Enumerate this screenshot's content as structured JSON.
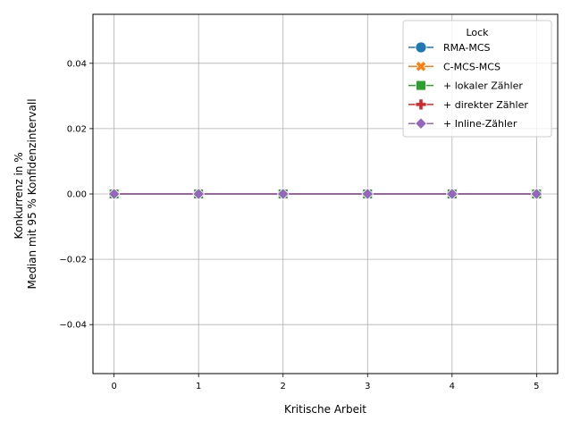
{
  "chart_data": {
    "type": "line",
    "title": "",
    "xlabel": "Kritische Arbeit",
    "ylabel_lines": [
      "Konkurrenz in %",
      "Median mit 95 % Konfidenzintervall"
    ],
    "x": [
      0,
      1,
      2,
      3,
      4,
      5
    ],
    "xlim": [
      -0.25,
      5.25
    ],
    "ylim": [
      -0.055,
      0.055
    ],
    "xticks": [
      0,
      1,
      2,
      3,
      4,
      5
    ],
    "yticks": [
      0.04,
      0.02,
      0.0,
      -0.02,
      -0.04
    ],
    "ytick_labels": [
      "0.04",
      "0.02",
      "0.00",
      "−0.02",
      "−0.04"
    ],
    "grid": true,
    "legend": {
      "title": "Lock",
      "placement": "top-right"
    },
    "series": [
      {
        "name": "RMA-MCS",
        "color": "#1f77b4",
        "marker": "circle",
        "values": [
          0,
          0,
          0,
          0,
          0,
          0
        ]
      },
      {
        "name": "C-MCS-MCS",
        "color": "#ff7f0e",
        "marker": "x-filled",
        "values": [
          0,
          0,
          0,
          0,
          0,
          0
        ]
      },
      {
        "name": "+ lokaler Zähler",
        "color": "#2ca02c",
        "marker": "square",
        "values": [
          0,
          0,
          0,
          0,
          0,
          0
        ]
      },
      {
        "name": "+ direkter Zähler",
        "color": "#d62728",
        "marker": "plus-filled",
        "values": [
          0,
          0,
          0,
          0,
          0,
          0
        ]
      },
      {
        "name": "+ Inline-Zähler",
        "color": "#9467bd",
        "marker": "diamond",
        "values": [
          0,
          0,
          0,
          0,
          0,
          0
        ]
      }
    ]
  }
}
